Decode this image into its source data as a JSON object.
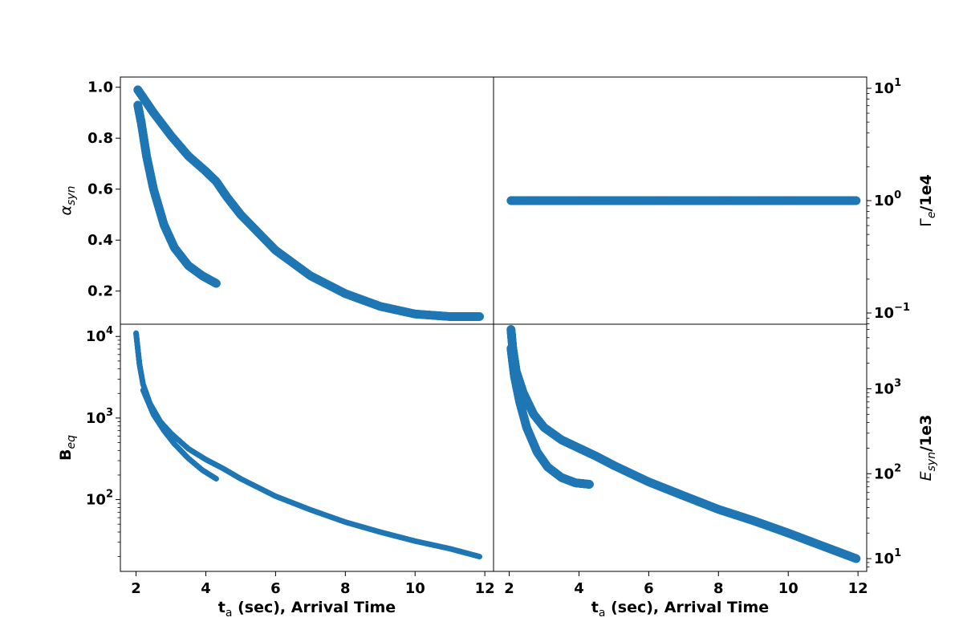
{
  "chart_data": [
    {
      "panel": "top-left",
      "type": "scatter",
      "title": "",
      "xlabel": "",
      "ylabel": "α_syn",
      "xlim": [
        1.55,
        12.25
      ],
      "ylim": [
        0.07,
        1.04
      ],
      "yscale": "linear",
      "yticks": [
        0.2,
        0.4,
        0.6,
        0.8,
        1.0
      ],
      "ytick_labels": [
        "0.2",
        "0.4",
        "0.6",
        "0.8",
        "1.0"
      ],
      "color": "#1f77b4",
      "series": [
        {
          "x": [
            2.05,
            2.2,
            2.5,
            3.0,
            3.5,
            4.0,
            4.3,
            4.6,
            5.0,
            6.0,
            7.0,
            8.0,
            9.0,
            10.0,
            11.0,
            11.85
          ],
          "y": [
            0.99,
            0.96,
            0.9,
            0.81,
            0.73,
            0.67,
            0.63,
            0.57,
            0.5,
            0.36,
            0.26,
            0.19,
            0.14,
            0.11,
            0.1,
            0.1
          ]
        },
        {
          "x": [
            2.05,
            2.15,
            2.3,
            2.5,
            2.8,
            3.1,
            3.5,
            3.9,
            4.3
          ],
          "y": [
            0.93,
            0.86,
            0.73,
            0.6,
            0.46,
            0.37,
            0.3,
            0.26,
            0.23
          ]
        }
      ]
    },
    {
      "panel": "top-right",
      "type": "scatter",
      "title": "",
      "xlabel": "",
      "ylabel": "Γ_e/1e4",
      "xlim": [
        1.55,
        12.25
      ],
      "ylim_log": [
        -1.1,
        1.1
      ],
      "yscale": "log",
      "yticks": [
        0.1,
        1,
        10
      ],
      "ytick_labels": [
        "10",
        "10",
        "10"
      ],
      "ytick_exponents": [
        "−1",
        "0",
        "1"
      ],
      "color": "#1f77b4",
      "series": [
        {
          "x": [
            2.05,
            3,
            4,
            5,
            6,
            7,
            8,
            9,
            10,
            11,
            11.95
          ],
          "y": [
            1,
            1,
            1,
            1,
            1,
            1,
            1,
            1,
            1,
            1,
            1
          ]
        }
      ]
    },
    {
      "panel": "bottom-left",
      "type": "scatter",
      "title": "",
      "xlabel": "t_a (sec), Arrival Time",
      "ylabel": "B_eq",
      "xlim": [
        1.55,
        12.25
      ],
      "ylim_log": [
        1.12,
        4.15
      ],
      "yscale": "log",
      "xticks": [
        2,
        4,
        6,
        8,
        10,
        12
      ],
      "xtick_labels": [
        "2",
        "4",
        "6",
        "8",
        "10",
        "12"
      ],
      "yticks": [
        100,
        1000,
        10000
      ],
      "ytick_labels": [
        "10",
        "10",
        "10"
      ],
      "ytick_exponents": [
        "2",
        "3",
        "4"
      ],
      "color": "#1f77b4",
      "series": [
        {
          "x": [
            2.0,
            2.05,
            2.1,
            2.2,
            2.4,
            2.7,
            3.0,
            3.5,
            4.0,
            4.5,
            5.0,
            6.0,
            7.0,
            8.0,
            9.0,
            10.0,
            11.0,
            11.85
          ],
          "y": [
            11000,
            7000,
            4500,
            2600,
            1500,
            900,
            650,
            420,
            310,
            240,
            180,
            110,
            75,
            53,
            40,
            31,
            25,
            20
          ]
        },
        {
          "x": [
            2.2,
            2.5,
            2.8,
            3.1,
            3.5,
            3.9,
            4.3
          ],
          "y": [
            2200,
            1100,
            700,
            480,
            320,
            230,
            180
          ]
        }
      ]
    },
    {
      "panel": "bottom-right",
      "type": "scatter",
      "title": "",
      "xlabel": "t_a (sec), Arrival Time",
      "ylabel": "E_syn/1e3",
      "xlim": [
        1.55,
        12.25
      ],
      "ylim_log": [
        0.85,
        3.76
      ],
      "yscale": "log",
      "xticks": [
        2,
        4,
        6,
        8,
        10,
        12
      ],
      "xtick_labels": [
        "2",
        "4",
        "6",
        "8",
        "10",
        "12"
      ],
      "yticks": [
        10,
        100,
        1000
      ],
      "ytick_labels": [
        "10",
        "10",
        "10"
      ],
      "ytick_exponents": [
        "1",
        "2",
        "3"
      ],
      "color": "#1f77b4",
      "series": [
        {
          "x": [
            2.05,
            2.1,
            2.2,
            2.4,
            2.7,
            3.0,
            3.5,
            4.0,
            4.5,
            5.0,
            6.0,
            7.0,
            8.0,
            9.0,
            10.0,
            11.0,
            11.95
          ],
          "y": [
            5000,
            3000,
            1600,
            900,
            500,
            350,
            250,
            200,
            160,
            125,
            80,
            55,
            38,
            28,
            20,
            14,
            10
          ]
        },
        {
          "x": [
            2.05,
            2.15,
            2.3,
            2.5,
            2.8,
            3.1,
            3.5,
            3.9,
            4.3
          ],
          "y": [
            3000,
            1400,
            700,
            350,
            180,
            120,
            90,
            78,
            75
          ]
        }
      ]
    }
  ]
}
